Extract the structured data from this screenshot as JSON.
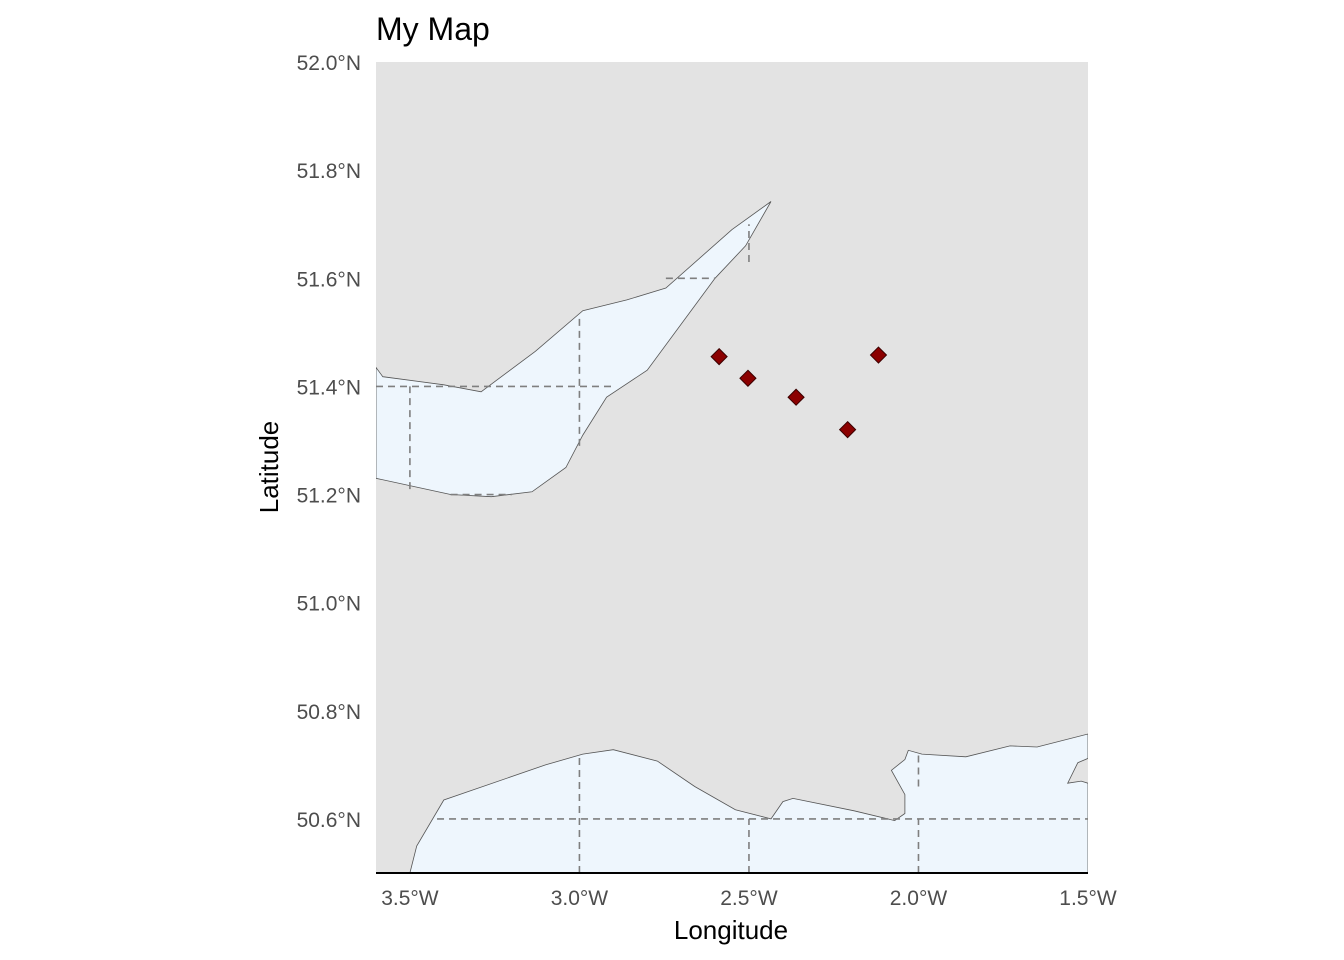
{
  "title": "My Map",
  "x_axis_label": "Longitude",
  "y_axis_label": "Latitude",
  "colors": {
    "sea": "#e3e3e3",
    "land": "#eef6fd",
    "coast_stroke": "#555555",
    "graticule": "#7f7f7f",
    "marker_fill": "#8b0000",
    "marker_stroke": "#3a0000"
  },
  "chart_data": {
    "type": "scatter",
    "title": "My Map",
    "xlabel": "Longitude",
    "ylabel": "Latitude",
    "xlim": [
      -3.6,
      -1.5
    ],
    "ylim": [
      50.5,
      52.0
    ],
    "grid": false,
    "x_ticks": [
      {
        "value": -3.5,
        "label": "3.5°W"
      },
      {
        "value": -3.0,
        "label": "3.0°W"
      },
      {
        "value": -2.5,
        "label": "2.5°W"
      },
      {
        "value": -2.0,
        "label": "2.0°W"
      },
      {
        "value": -1.5,
        "label": "1.5°W"
      }
    ],
    "y_ticks": [
      {
        "value": 50.6,
        "label": "50.6°N"
      },
      {
        "value": 50.8,
        "label": "50.8°N"
      },
      {
        "value": 51.0,
        "label": "51.0°N"
      },
      {
        "value": 51.2,
        "label": "51.2°N"
      },
      {
        "value": 51.4,
        "label": "51.4°N"
      },
      {
        "value": 51.6,
        "label": "51.6°N"
      },
      {
        "value": 51.8,
        "label": "51.8°N"
      },
      {
        "value": 52.0,
        "label": "52.0°N"
      }
    ],
    "points": [
      {
        "lon": -2.588,
        "lat": 51.455
      },
      {
        "lon": -2.503,
        "lat": 51.415
      },
      {
        "lon": -2.361,
        "lat": 51.38
      },
      {
        "lon": -2.209,
        "lat": 51.32
      },
      {
        "lon": -2.118,
        "lat": 51.458
      }
    ],
    "land_polygons": [
      {
        "name": "wales-coast",
        "coords": [
          [
            -3.6,
            51.435
          ],
          [
            -3.58,
            51.418
          ],
          [
            -3.4,
            51.403
          ],
          [
            -3.29,
            51.39
          ],
          [
            -3.13,
            51.465
          ],
          [
            -2.99,
            51.54
          ],
          [
            -2.86,
            51.56
          ],
          [
            -2.745,
            51.582
          ],
          [
            -2.55,
            51.69
          ],
          [
            -2.435,
            51.742
          ],
          [
            -2.51,
            51.66
          ],
          [
            -2.6,
            51.6
          ],
          [
            -2.8,
            51.43
          ],
          [
            -2.92,
            51.38
          ],
          [
            -2.99,
            51.31
          ],
          [
            -3.04,
            51.25
          ],
          [
            -3.14,
            51.205
          ],
          [
            -3.26,
            51.196
          ],
          [
            -3.38,
            51.2
          ],
          [
            -3.6,
            51.23
          ]
        ]
      },
      {
        "name": "south-coast-west",
        "coords": [
          [
            -3.5,
            50.5
          ],
          [
            -3.48,
            50.55
          ],
          [
            -3.4,
            50.635
          ],
          [
            -3.1,
            50.7
          ],
          [
            -2.99,
            50.72
          ],
          [
            -2.9,
            50.728
          ],
          [
            -2.77,
            50.707
          ],
          [
            -2.66,
            50.66
          ],
          [
            -2.54,
            50.617
          ],
          [
            -2.435,
            50.6
          ],
          [
            -2.4,
            50.632
          ],
          [
            -2.37,
            50.638
          ],
          [
            -2.19,
            50.615
          ],
          [
            -2.07,
            50.597
          ],
          [
            -2.04,
            50.61
          ],
          [
            -2.04,
            50.645
          ],
          [
            -2.08,
            50.69
          ],
          [
            -2.04,
            50.71
          ],
          [
            -2.03,
            50.727
          ],
          [
            -1.99,
            50.72
          ],
          [
            -1.86,
            50.715
          ],
          [
            -1.73,
            50.735
          ],
          [
            -1.65,
            50.733
          ],
          [
            -1.5,
            50.757
          ],
          [
            -1.5,
            50.712
          ],
          [
            -1.53,
            50.704
          ],
          [
            -1.56,
            50.666
          ],
          [
            -1.52,
            50.67
          ],
          [
            -1.5,
            50.666
          ],
          [
            -1.5,
            50.5
          ]
        ]
      }
    ],
    "graticule_segments": [
      {
        "axis": "lat",
        "value": 51.6,
        "from": -2.745,
        "to": -2.6
      },
      {
        "axis": "lat",
        "value": 51.4,
        "from": -3.6,
        "to": -2.9
      },
      {
        "axis": "lat",
        "value": 51.2,
        "from": -3.38,
        "to": -3.2
      },
      {
        "axis": "lon",
        "value": -3.5,
        "from": 51.21,
        "to": 51.4
      },
      {
        "axis": "lon",
        "value": -3.0,
        "from": 51.29,
        "to": 51.53
      },
      {
        "axis": "lon",
        "value": -2.5,
        "from": 51.63,
        "to": 51.7
      },
      {
        "axis": "lat",
        "value": 50.6,
        "from": -3.42,
        "to": -1.5
      },
      {
        "axis": "lon",
        "value": -3.0,
        "from": 50.5,
        "to": 50.72
      },
      {
        "axis": "lon",
        "value": -2.5,
        "from": 50.5,
        "to": 50.6
      },
      {
        "axis": "lon",
        "value": -2.0,
        "from": 50.5,
        "to": 50.6
      },
      {
        "axis": "lon",
        "value": -2.0,
        "from": 50.66,
        "to": 50.72
      }
    ]
  }
}
